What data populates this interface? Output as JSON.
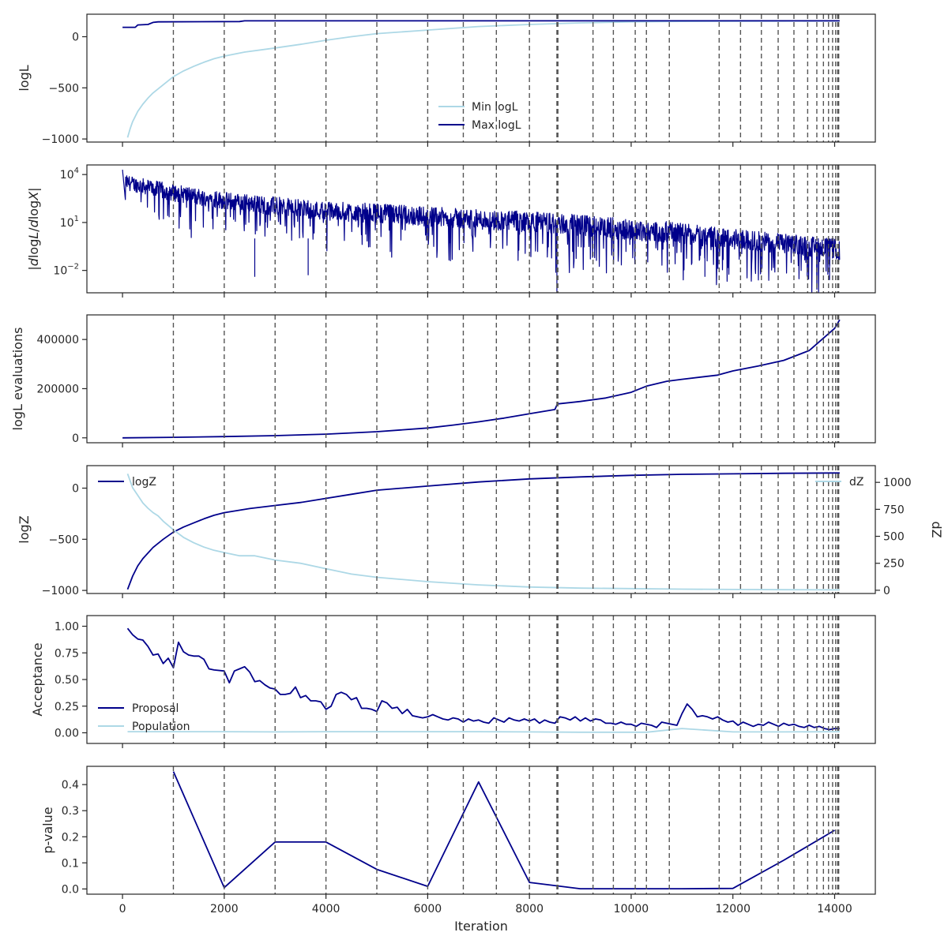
{
  "chart_data": [
    {
      "type": "line",
      "panel": "logL",
      "ylabel": "logL",
      "ylim": [
        -1030,
        220
      ],
      "yticks": [
        -1000,
        -500,
        0
      ],
      "ytick_labels": [
        "−1000",
        "−500",
        "0"
      ],
      "legend": {
        "placement": "lower-center",
        "entries": [
          "Min logL",
          "Max logL"
        ]
      },
      "series": [
        {
          "name": "Min logL",
          "color": "#add8e6",
          "x": [
            100,
            150,
            200,
            300,
            400,
            500,
            600,
            800,
            1000,
            1200,
            1400,
            1600,
            1800,
            2000,
            2400,
            3000,
            3500,
            4000,
            4500,
            5000,
            6000,
            7000,
            8000,
            9000,
            10000,
            11000,
            12000,
            13000,
            14000,
            14100
          ],
          "y": [
            -985,
            -900,
            -830,
            -730,
            -660,
            -600,
            -550,
            -470,
            -390,
            -335,
            -290,
            -250,
            -215,
            -190,
            -150,
            -110,
            -75,
            -35,
            0,
            30,
            65,
            100,
            120,
            135,
            145,
            150,
            152,
            153,
            154,
            154
          ]
        },
        {
          "name": "Max logL",
          "color": "#00008b",
          "x": [
            0,
            250,
            300,
            500,
            600,
            700,
            2300,
            2400,
            14100
          ],
          "y": [
            92,
            92,
            115,
            120,
            140,
            145,
            148,
            155,
            155
          ]
        }
      ]
    },
    {
      "type": "line",
      "panel": "gradient",
      "ylabel": "|dlogL/dlogX|",
      "yscale": "log",
      "ylim_log10": [
        -3.4,
        4.6
      ],
      "yticks_log10": [
        -2,
        1,
        4
      ],
      "ytick_labels": [
        "10^{-2}",
        "10^{1}",
        "10^{4}"
      ],
      "series": [
        {
          "name": "",
          "color": "#00008b",
          "description_of_envelope": "upper/lower bounds in log10 units",
          "x": [
            0,
            1000,
            2000,
            3000,
            4000,
            5000,
            6000,
            7000,
            8000,
            9000,
            10000,
            11000,
            12000,
            13000,
            14000,
            14100
          ],
          "upper_log10": [
            4.0,
            3.4,
            2.9,
            2.6,
            2.3,
            2.2,
            2.0,
            1.8,
            1.7,
            1.5,
            1.2,
            1.0,
            0.6,
            0.3,
            0.0,
            -0.2
          ],
          "lower_log10": [
            2.0,
            1.0,
            0.5,
            0.0,
            -0.3,
            -0.5,
            -0.8,
            -1.0,
            -1.2,
            -1.5,
            -1.7,
            -2.0,
            -2.2,
            -2.5,
            -2.9,
            -2.9
          ]
        }
      ]
    },
    {
      "type": "line",
      "panel": "evaluations",
      "ylabel": "logL evaluations",
      "ylim": [
        -20000,
        500000
      ],
      "yticks": [
        0,
        200000,
        400000
      ],
      "ytick_labels": [
        "0",
        "200000",
        "400000"
      ],
      "series": [
        {
          "name": "",
          "color": "#00008b",
          "x": [
            0,
            1000,
            2000,
            3000,
            4000,
            5000,
            6000,
            6500,
            7000,
            7500,
            8000,
            8500,
            8550,
            9000,
            9500,
            10000,
            10300,
            10700,
            11000,
            11700,
            12000,
            12500,
            13000,
            13500,
            14000,
            14100
          ],
          "y": [
            0,
            2000,
            5000,
            9000,
            15000,
            25000,
            40000,
            52000,
            65000,
            80000,
            98000,
            115000,
            138000,
            148000,
            162000,
            185000,
            210000,
            230000,
            238000,
            255000,
            272000,
            292000,
            315000,
            355000,
            445000,
            480000
          ]
        }
      ]
    },
    {
      "type": "line",
      "panel": "evidence",
      "ylabel": "logZ",
      "ylabel_right": "dZ",
      "ylim": [
        -1030,
        220
      ],
      "yticks": [
        -1000,
        -500,
        0
      ],
      "ytick_labels": [
        "−1000",
        "−500",
        "0"
      ],
      "ylim_right": [
        -30,
        1155
      ],
      "yticks_right": [
        0,
        250,
        500,
        750,
        1000
      ],
      "ytick_labels_right": [
        "0",
        "250",
        "500",
        "750",
        "1000"
      ],
      "legend": {
        "placement": "split: logZ top-left, dZ top-right",
        "entries": [
          "logZ",
          "dZ"
        ]
      },
      "series": [
        {
          "name": "logZ",
          "color": "#00008b",
          "axis": "left",
          "x": [
            100,
            200,
            300,
            400,
            600,
            800,
            1000,
            1200,
            1400,
            1600,
            1800,
            2000,
            2500,
            3000,
            3500,
            4000,
            4500,
            5000,
            6000,
            7000,
            8000,
            9000,
            10000,
            11000,
            12000,
            13000,
            14000,
            14100
          ],
          "y": [
            -990,
            -860,
            -760,
            -690,
            -580,
            -500,
            -430,
            -380,
            -340,
            -300,
            -265,
            -240,
            -200,
            -170,
            -140,
            -100,
            -60,
            -20,
            20,
            60,
            90,
            110,
            125,
            135,
            140,
            145,
            148,
            148
          ]
        },
        {
          "name": "dZ",
          "color": "#add8e6",
          "axis": "right",
          "x": [
            100,
            200,
            300,
            400,
            500,
            600,
            700,
            800,
            1000,
            1200,
            1400,
            1600,
            1800,
            2000,
            2300,
            2600,
            3000,
            3500,
            4000,
            4500,
            5000,
            6000,
            7000,
            8000,
            9000,
            10000,
            11000,
            12000,
            13000,
            14000,
            14100
          ],
          "y": [
            1080,
            950,
            880,
            810,
            760,
            720,
            690,
            640,
            560,
            490,
            440,
            400,
            370,
            350,
            320,
            320,
            280,
            250,
            200,
            150,
            120,
            80,
            50,
            30,
            20,
            15,
            10,
            7,
            5,
            4,
            4
          ]
        }
      ]
    },
    {
      "type": "line",
      "panel": "acceptance",
      "ylabel": "Acceptance",
      "ylim": [
        -0.1,
        1.1
      ],
      "yticks": [
        0.0,
        0.25,
        0.5,
        0.75,
        1.0
      ],
      "ytick_labels": [
        "0.00",
        "0.25",
        "0.50",
        "0.75",
        "1.00"
      ],
      "legend": {
        "placement": "lower-left",
        "entries": [
          "Proposal",
          "Population"
        ]
      },
      "series": [
        {
          "name": "Proposal",
          "color": "#00008b",
          "x": [
            100,
            200,
            300,
            400,
            500,
            600,
            700,
            800,
            900,
            1000,
            1100,
            1200,
            1300,
            1400,
            1500,
            1600,
            1700,
            1800,
            2000,
            2100,
            2200,
            2300,
            2400,
            2500,
            2600,
            2700,
            2800,
            2900,
            3000,
            3100,
            3200,
            3300,
            3400,
            3500,
            3600,
            3700,
            3800,
            3900,
            4000,
            4100,
            4200,
            4300,
            4400,
            4500,
            4600,
            4700,
            4800,
            4900,
            5000,
            5100,
            5200,
            5300,
            5400,
            5500,
            5600,
            5700,
            5800,
            5900,
            6000,
            6100,
            6200,
            6300,
            6400,
            6500,
            6600,
            6700,
            6800,
            6900,
            7000,
            7100,
            7200,
            7300,
            7400,
            7500,
            7600,
            7700,
            7800,
            7900,
            8000,
            8100,
            8200,
            8300,
            8400,
            8500,
            8600,
            8700,
            8800,
            8900,
            9000,
            9100,
            9200,
            9300,
            9400,
            9500,
            9600,
            9700,
            9800,
            9900,
            10000,
            10100,
            10200,
            10300,
            10400,
            10500,
            10600,
            10700,
            10800,
            10900,
            11000,
            11100,
            11200,
            11300,
            11400,
            11500,
            11600,
            11700,
            11800,
            11900,
            12000,
            12100,
            12200,
            12300,
            12400,
            12500,
            12600,
            12700,
            12800,
            12900,
            13000,
            13100,
            13200,
            13300,
            13400,
            13500,
            13600,
            13700,
            13800,
            13900,
            14000,
            14100
          ],
          "y": [
            0.98,
            0.92,
            0.88,
            0.87,
            0.81,
            0.73,
            0.74,
            0.65,
            0.7,
            0.61,
            0.85,
            0.76,
            0.73,
            0.72,
            0.72,
            0.69,
            0.6,
            0.59,
            0.58,
            0.47,
            0.58,
            0.6,
            0.62,
            0.57,
            0.48,
            0.49,
            0.45,
            0.42,
            0.41,
            0.36,
            0.36,
            0.37,
            0.43,
            0.33,
            0.35,
            0.3,
            0.3,
            0.29,
            0.22,
            0.25,
            0.36,
            0.38,
            0.36,
            0.31,
            0.33,
            0.23,
            0.23,
            0.22,
            0.2,
            0.3,
            0.28,
            0.23,
            0.24,
            0.18,
            0.22,
            0.16,
            0.15,
            0.14,
            0.15,
            0.17,
            0.15,
            0.13,
            0.12,
            0.14,
            0.13,
            0.1,
            0.13,
            0.11,
            0.12,
            0.1,
            0.09,
            0.14,
            0.12,
            0.1,
            0.14,
            0.12,
            0.11,
            0.13,
            0.11,
            0.13,
            0.09,
            0.12,
            0.1,
            0.09,
            0.15,
            0.14,
            0.12,
            0.15,
            0.11,
            0.14,
            0.11,
            0.13,
            0.12,
            0.09,
            0.09,
            0.08,
            0.1,
            0.08,
            0.08,
            0.06,
            0.09,
            0.08,
            0.07,
            0.05,
            0.1,
            0.09,
            0.08,
            0.07,
            0.18,
            0.27,
            0.22,
            0.15,
            0.16,
            0.15,
            0.13,
            0.15,
            0.12,
            0.1,
            0.11,
            0.07,
            0.1,
            0.08,
            0.06,
            0.08,
            0.07,
            0.1,
            0.08,
            0.06,
            0.09,
            0.07,
            0.08,
            0.06,
            0.05,
            0.07,
            0.05,
            0.06,
            0.04,
            0.03,
            0.04,
            0.04
          ]
        },
        {
          "name": "Population",
          "color": "#add8e6",
          "x": [
            100,
            1000,
            2000,
            3000,
            4000,
            5000,
            6000,
            7000,
            8000,
            9000,
            10000,
            10300,
            11000,
            12000,
            13000,
            14000,
            14100
          ],
          "y": [
            0.01,
            0.01,
            0.01,
            0.008,
            0.01,
            0.01,
            0.01,
            0.01,
            0.008,
            0.005,
            0.005,
            0.005,
            0.04,
            0.008,
            0.008,
            0.01,
            0.01
          ]
        }
      ]
    },
    {
      "type": "line",
      "panel": "p-value",
      "ylabel": "p-value",
      "xlabel": "Iteration",
      "ylim": [
        -0.02,
        0.47
      ],
      "yticks": [
        0.0,
        0.1,
        0.2,
        0.3,
        0.4
      ],
      "ytick_labels": [
        "0.0",
        "0.1",
        "0.2",
        "0.3",
        "0.4"
      ],
      "series": [
        {
          "name": "",
          "color": "#00008b",
          "x": [
            1000,
            2000,
            3000,
            4000,
            5000,
            6000,
            7000,
            8000,
            9000,
            10000,
            11000,
            12000,
            13000,
            14000
          ],
          "y": [
            0.45,
            0.005,
            0.18,
            0.18,
            0.075,
            0.01,
            0.41,
            0.025,
            0.001,
            0.001,
            0.001,
            0.002,
            0.11,
            0.225
          ]
        }
      ]
    }
  ],
  "shared_x": {
    "xlim": [
      -700,
      14800
    ],
    "xticks": [
      0,
      2000,
      4000,
      6000,
      8000,
      10000,
      12000,
      14000
    ],
    "xtick_labels": [
      "0",
      "2000",
      "4000",
      "6000",
      "8000",
      "10000",
      "12000",
      "14000"
    ],
    "xlabel": "Iteration"
  },
  "vertical_markers": {
    "style": "dashed",
    "color": "#555555",
    "x": [
      1000,
      2000,
      3000,
      4000,
      5000,
      6000,
      6700,
      7350,
      8000,
      8540,
      8560,
      9250,
      9650,
      10080,
      10300,
      10750,
      11730,
      12150,
      12560,
      12890,
      13200,
      13470,
      13650,
      13780,
      13880,
      13960,
      14020,
      14060,
      14080
    ]
  }
}
